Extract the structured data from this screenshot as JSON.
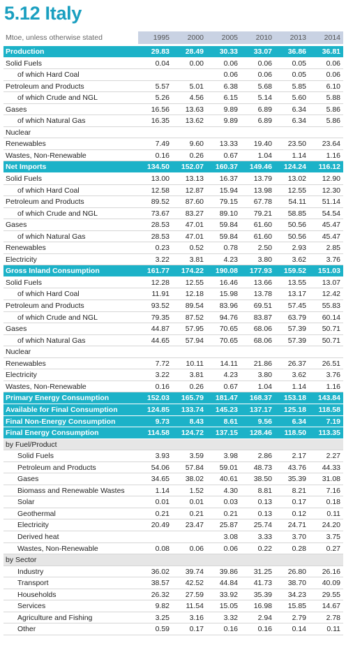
{
  "title": "5.12 Italy",
  "table": {
    "header": [
      "Mtoe, unless otherwise stated",
      "1995",
      "2000",
      "2005",
      "2010",
      "2013",
      "2014"
    ],
    "rows": [
      {
        "label": "Production",
        "style": "total",
        "values": [
          "29.83",
          "28.49",
          "30.33",
          "33.07",
          "36.86",
          "36.81"
        ]
      },
      {
        "label": "Solid Fuels",
        "values": [
          "0.04",
          "0.00",
          "0.06",
          "0.06",
          "0.05",
          "0.06"
        ]
      },
      {
        "label": "of which Hard Coal",
        "style": "sub",
        "values": [
          null,
          null,
          "0.06",
          "0.06",
          "0.05",
          "0.06"
        ]
      },
      {
        "label": "Petroleum and Products",
        "values": [
          "5.57",
          "5.01",
          "6.38",
          "5.68",
          "5.85",
          "6.10"
        ]
      },
      {
        "label": "of which Crude and NGL",
        "style": "sub",
        "values": [
          "5.26",
          "4.56",
          "6.15",
          "5.14",
          "5.60",
          "5.88"
        ]
      },
      {
        "label": "Gases",
        "values": [
          "16.56",
          "13.63",
          "9.89",
          "6.89",
          "6.34",
          "5.86"
        ]
      },
      {
        "label": "of which Natural Gas",
        "style": "sub",
        "values": [
          "16.35",
          "13.62",
          "9.89",
          "6.89",
          "6.34",
          "5.86"
        ]
      },
      {
        "label": "Nuclear",
        "values": [
          null,
          null,
          null,
          null,
          null,
          null
        ]
      },
      {
        "label": "Renewables",
        "values": [
          "7.49",
          "9.60",
          "13.33",
          "19.40",
          "23.50",
          "23.64"
        ]
      },
      {
        "label": "Wastes, Non-Renewable",
        "values": [
          "0.16",
          "0.26",
          "0.67",
          "1.04",
          "1.14",
          "1.16"
        ]
      },
      {
        "label": "Net Imports",
        "style": "total",
        "values": [
          "134.50",
          "152.07",
          "160.37",
          "149.46",
          "124.24",
          "116.12"
        ]
      },
      {
        "label": "Solid Fuels",
        "values": [
          "13.00",
          "13.13",
          "16.37",
          "13.79",
          "13.02",
          "12.90"
        ]
      },
      {
        "label": "of which Hard Coal",
        "style": "sub",
        "values": [
          "12.58",
          "12.87",
          "15.94",
          "13.98",
          "12.55",
          "12.30"
        ]
      },
      {
        "label": "Petroleum and Products",
        "values": [
          "89.52",
          "87.60",
          "79.15",
          "67.78",
          "54.11",
          "51.14"
        ]
      },
      {
        "label": "of which Crude and NGL",
        "style": "sub",
        "values": [
          "73.67",
          "83.27",
          "89.10",
          "79.21",
          "58.85",
          "54.54"
        ]
      },
      {
        "label": "Gases",
        "values": [
          "28.53",
          "47.01",
          "59.84",
          "61.60",
          "50.56",
          "45.47"
        ]
      },
      {
        "label": "of which Natural Gas",
        "style": "sub",
        "values": [
          "28.53",
          "47.01",
          "59.84",
          "61.60",
          "50.56",
          "45.47"
        ]
      },
      {
        "label": "Renewables",
        "values": [
          "0.23",
          "0.52",
          "0.78",
          "2.50",
          "2.93",
          "2.85"
        ]
      },
      {
        "label": "Electricity",
        "values": [
          "3.22",
          "3.81",
          "4.23",
          "3.80",
          "3.62",
          "3.76"
        ]
      },
      {
        "label": "Gross Inland Consumption",
        "style": "total",
        "values": [
          "161.77",
          "174.22",
          "190.08",
          "177.93",
          "159.52",
          "151.03"
        ]
      },
      {
        "label": "Solid Fuels",
        "values": [
          "12.28",
          "12.55",
          "16.46",
          "13.66",
          "13.55",
          "13.07"
        ]
      },
      {
        "label": "of which Hard Coal",
        "style": "sub",
        "values": [
          "11.91",
          "12.18",
          "15.98",
          "13.78",
          "13.17",
          "12.42"
        ]
      },
      {
        "label": "Petroleum and Products",
        "values": [
          "93.52",
          "89.54",
          "83.96",
          "69.51",
          "57.45",
          "55.83"
        ]
      },
      {
        "label": "of which Crude and NGL",
        "style": "sub",
        "values": [
          "79.35",
          "87.52",
          "94.76",
          "83.87",
          "63.79",
          "60.14"
        ]
      },
      {
        "label": "Gases",
        "values": [
          "44.87",
          "57.95",
          "70.65",
          "68.06",
          "57.39",
          "50.71"
        ]
      },
      {
        "label": "of which Natural Gas",
        "style": "sub",
        "values": [
          "44.65",
          "57.94",
          "70.65",
          "68.06",
          "57.39",
          "50.71"
        ]
      },
      {
        "label": "Nuclear",
        "values": [
          null,
          null,
          null,
          null,
          null,
          null
        ]
      },
      {
        "label": "Renewables",
        "values": [
          "7.72",
          "10.11",
          "14.11",
          "21.86",
          "26.37",
          "26.51"
        ]
      },
      {
        "label": "Electricity",
        "values": [
          "3.22",
          "3.81",
          "4.23",
          "3.80",
          "3.62",
          "3.76"
        ]
      },
      {
        "label": "Wastes, Non-Renewable",
        "values": [
          "0.16",
          "0.26",
          "0.67",
          "1.04",
          "1.14",
          "1.16"
        ]
      },
      {
        "label": "Primary Energy Consumption",
        "style": "total",
        "values": [
          "152.03",
          "165.79",
          "181.47",
          "168.37",
          "153.18",
          "143.84"
        ]
      },
      {
        "label": "Available for Final Consumption",
        "style": "total",
        "values": [
          "124.85",
          "133.74",
          "145.23",
          "137.17",
          "125.18",
          "118.58"
        ]
      },
      {
        "label": "Final Non-Energy Consumption",
        "style": "total",
        "values": [
          "9.73",
          "8.43",
          "8.61",
          "9.56",
          "6.34",
          "7.19"
        ]
      },
      {
        "label": "Final Energy Consumption",
        "style": "total",
        "values": [
          "114.58",
          "124.72",
          "137.15",
          "128.46",
          "118.50",
          "113.35"
        ]
      },
      {
        "label": "by Fuel/Product",
        "style": "section",
        "values": [
          null,
          null,
          null,
          null,
          null,
          null
        ]
      },
      {
        "label": "Solid Fuels",
        "style": "sub",
        "values": [
          "3.93",
          "3.59",
          "3.98",
          "2.86",
          "2.17",
          "2.27"
        ]
      },
      {
        "label": "Petroleum and Products",
        "style": "sub",
        "values": [
          "54.06",
          "57.84",
          "59.01",
          "48.73",
          "43.76",
          "44.33"
        ]
      },
      {
        "label": "Gases",
        "style": "sub",
        "values": [
          "34.65",
          "38.02",
          "40.61",
          "38.50",
          "35.39",
          "31.08"
        ]
      },
      {
        "label": "Biomass and Renewable Wastes",
        "style": "sub",
        "values": [
          "1.14",
          "1.52",
          "4.30",
          "8.81",
          "8.21",
          "7.16"
        ]
      },
      {
        "label": "Solar",
        "style": "sub",
        "values": [
          "0.01",
          "0.01",
          "0.03",
          "0.13",
          "0.17",
          "0.18"
        ]
      },
      {
        "label": "Geothermal",
        "style": "sub",
        "values": [
          "0.21",
          "0.21",
          "0.21",
          "0.13",
          "0.12",
          "0.11"
        ]
      },
      {
        "label": "Electricity",
        "style": "sub",
        "values": [
          "20.49",
          "23.47",
          "25.87",
          "25.74",
          "24.71",
          "24.20"
        ]
      },
      {
        "label": "Derived heat",
        "style": "sub",
        "values": [
          null,
          null,
          "3.08",
          "3.33",
          "3.70",
          "3.75"
        ]
      },
      {
        "label": "Wastes, Non-Renewable",
        "style": "sub",
        "values": [
          "0.08",
          "0.06",
          "0.06",
          "0.22",
          "0.28",
          "0.27"
        ]
      },
      {
        "label": "by Sector",
        "style": "section",
        "values": [
          null,
          null,
          null,
          null,
          null,
          null
        ]
      },
      {
        "label": "Industry",
        "style": "sub",
        "values": [
          "36.02",
          "39.74",
          "39.86",
          "31.25",
          "26.80",
          "26.16"
        ]
      },
      {
        "label": "Transport",
        "style": "sub",
        "values": [
          "38.57",
          "42.52",
          "44.84",
          "41.73",
          "38.70",
          "40.09"
        ]
      },
      {
        "label": "Households",
        "style": "sub",
        "values": [
          "26.32",
          "27.59",
          "33.92",
          "35.39",
          "34.23",
          "29.55"
        ]
      },
      {
        "label": "Services",
        "style": "sub",
        "values": [
          "9.82",
          "11.54",
          "15.05",
          "16.98",
          "15.85",
          "14.67"
        ]
      },
      {
        "label": "Agriculture and Fishing",
        "style": "sub",
        "values": [
          "3.25",
          "3.16",
          "3.32",
          "2.94",
          "2.79",
          "2.78"
        ]
      },
      {
        "label": "Other",
        "style": "sub",
        "values": [
          "0.59",
          "0.17",
          "0.16",
          "0.16",
          "0.14",
          "0.11"
        ]
      }
    ]
  }
}
